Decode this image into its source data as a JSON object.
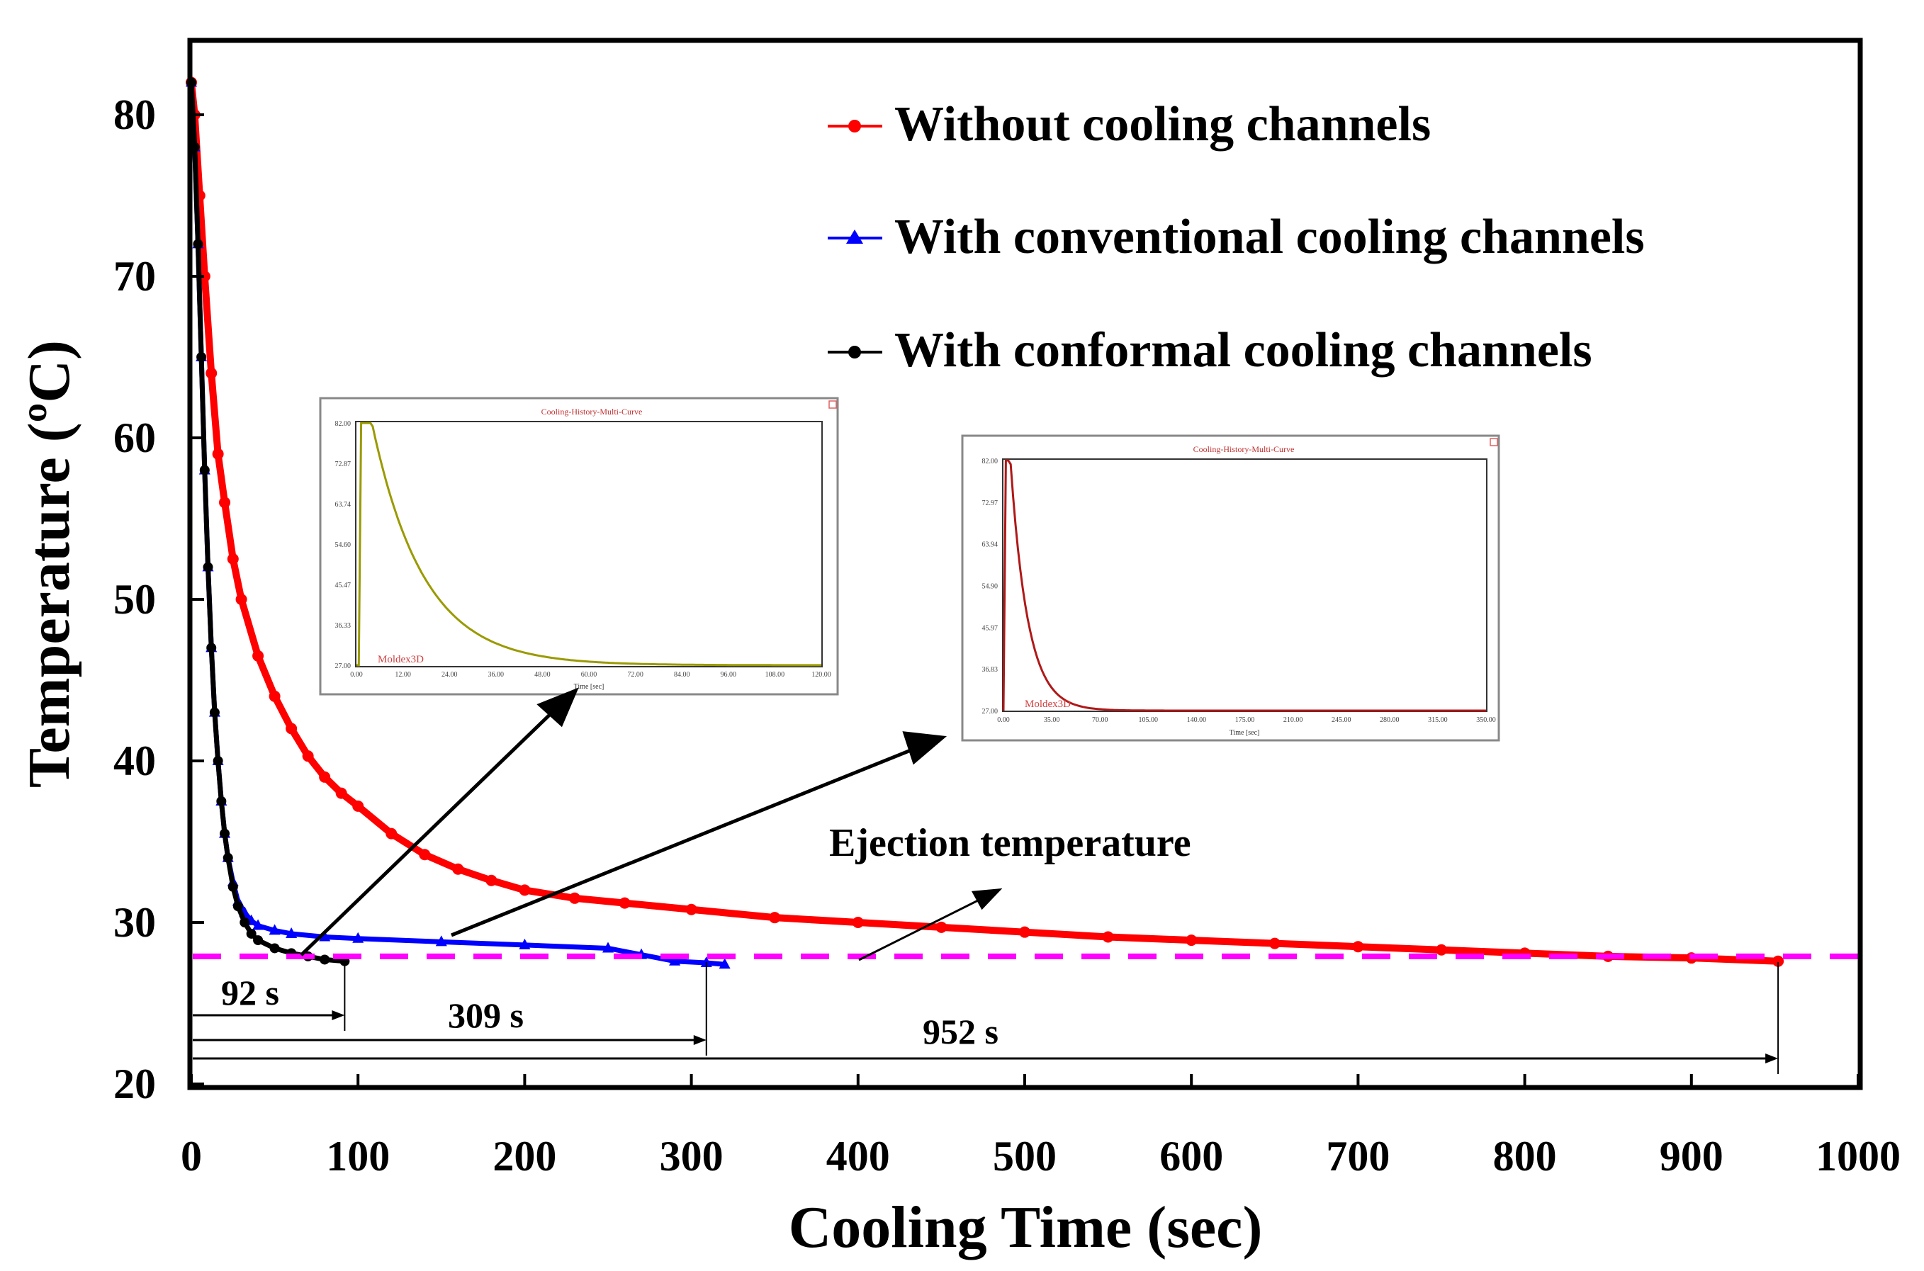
{
  "chart_data": {
    "type": "line",
    "title": "",
    "xlabel": "Cooling Time (sec)",
    "ylabel": "Temperature (ºC)",
    "xlim": [
      0,
      1000
    ],
    "ylim": [
      20,
      85
    ],
    "x_ticks": [
      "0",
      "100",
      "200",
      "300",
      "400",
      "500",
      "600",
      "700",
      "800",
      "900",
      "1000"
    ],
    "y_ticks": [
      "20",
      "30",
      "40",
      "50",
      "60",
      "70",
      "80"
    ],
    "legend_position": "top-right",
    "series": [
      {
        "name": "Without cooling channels",
        "color": "#ff0000",
        "marker": "circle",
        "x": [
          0,
          2,
          5,
          8,
          12,
          16,
          20,
          25,
          30,
          40,
          50,
          60,
          70,
          80,
          90,
          100,
          120,
          140,
          160,
          180,
          200,
          230,
          260,
          300,
          350,
          400,
          450,
          500,
          550,
          600,
          650,
          700,
          750,
          800,
          850,
          900,
          952
        ],
        "y": [
          82,
          80,
          75,
          70,
          64,
          59,
          56,
          52.5,
          50,
          46.5,
          44,
          42,
          40.3,
          39,
          38,
          37.2,
          35.5,
          34.2,
          33.3,
          32.6,
          32,
          31.5,
          31.2,
          30.8,
          30.3,
          30,
          29.7,
          29.4,
          29.1,
          28.9,
          28.7,
          28.5,
          28.3,
          28.1,
          27.9,
          27.8,
          27.6
        ]
      },
      {
        "name": "With conventional cooling channels",
        "color": "#0000ff",
        "marker": "triangle",
        "x": [
          0,
          2,
          4,
          6,
          8,
          10,
          12,
          14,
          16,
          18,
          20,
          22,
          25,
          28,
          32,
          36,
          40,
          50,
          60,
          80,
          100,
          150,
          200,
          250,
          270,
          290,
          309,
          320
        ],
        "y": [
          82,
          78,
          72,
          65,
          58,
          52,
          47,
          43,
          40,
          37.5,
          35.5,
          34,
          32.5,
          31.3,
          30.6,
          30.1,
          29.8,
          29.5,
          29.3,
          29.1,
          29,
          28.8,
          28.6,
          28.4,
          28.0,
          27.6,
          27.5,
          27.4
        ]
      },
      {
        "name": "With conformal cooling channels",
        "color": "#000000",
        "marker": "circle",
        "x": [
          0,
          2,
          4,
          6,
          8,
          10,
          12,
          14,
          16,
          18,
          20,
          22,
          25,
          28,
          32,
          36,
          40,
          50,
          60,
          70,
          80,
          92
        ],
        "y": [
          82,
          78,
          72,
          65,
          58,
          52,
          47,
          43,
          40,
          37.5,
          35.5,
          34,
          32.2,
          31,
          30,
          29.3,
          28.9,
          28.4,
          28.1,
          27.9,
          27.7,
          27.6
        ]
      }
    ],
    "reference_line": {
      "label": "Ejection temperature",
      "y": 27.9,
      "color": "#ff00ff",
      "style": "dashed"
    },
    "time_annotations": [
      {
        "label": "92 s",
        "value": 92,
        "row": 1
      },
      {
        "label": "309 s",
        "value": 309,
        "row": 2
      },
      {
        "label": "952 s",
        "value": 952,
        "row": 3
      }
    ],
    "insets": [
      {
        "title": "Cooling-History-Multi-Curve",
        "curve_color": "#9a9a00",
        "x_max": 120,
        "x_ticks": [
          "0.00",
          "12.00",
          "24.00",
          "36.00",
          "48.00",
          "60.00",
          "72.00",
          "84.00",
          "96.00",
          "108.00",
          "120.00"
        ],
        "y_ticks": [
          "27.00",
          "36.33",
          "45.47",
          "54.60",
          "63.74",
          "72.87",
          "82.00"
        ],
        "xlabel": "Time [sec]",
        "logo": "Moldex3D"
      },
      {
        "title": "Cooling-History-Multi-Curve",
        "curve_color": "#b01818",
        "x_max": 350,
        "x_ticks": [
          "0.00",
          "35.00",
          "70.00",
          "105.00",
          "140.00",
          "175.00",
          "210.00",
          "245.00",
          "280.00",
          "315.00",
          "350.00"
        ],
        "y_ticks": [
          "27.00",
          "36.83",
          "45.97",
          "54.90",
          "63.94",
          "72.97",
          "82.00"
        ],
        "xlabel": "Time [sec]",
        "logo": "Moldex3D"
      }
    ]
  }
}
